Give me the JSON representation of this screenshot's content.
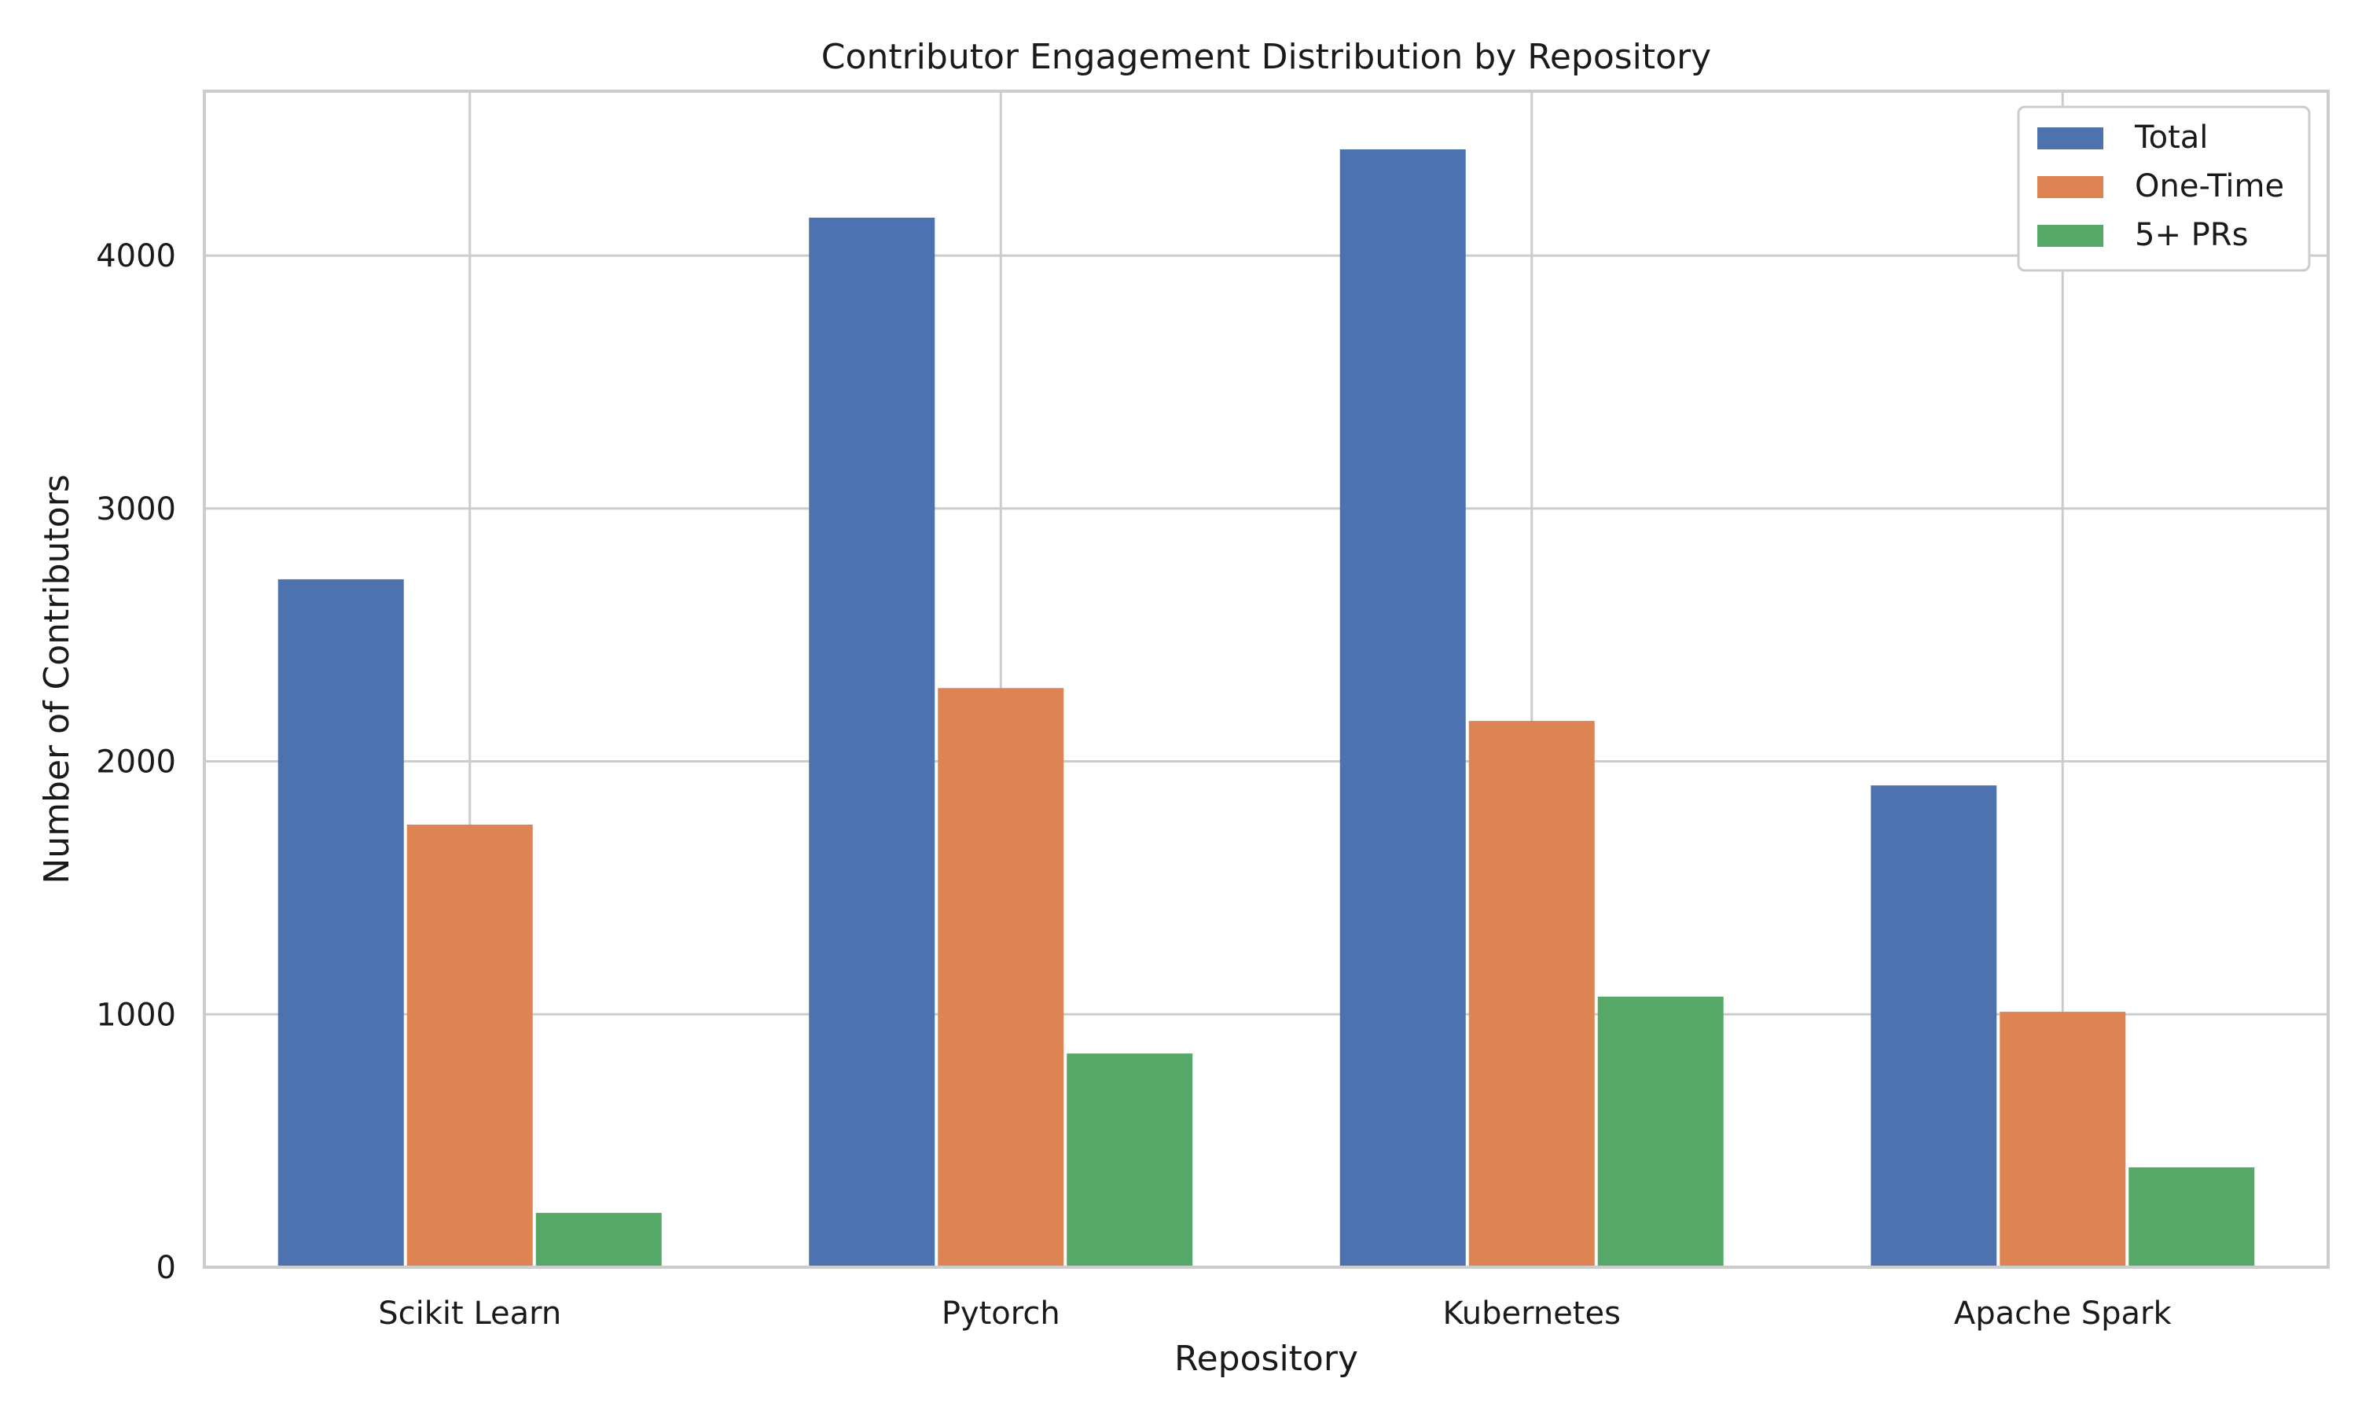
{
  "colors": {
    "total": "#4c72b0",
    "one_time": "#dd8452",
    "five_plus": "#55a868",
    "grid": "#cccccc"
  },
  "chart_data": {
    "type": "bar",
    "title": "Contributor Engagement Distribution by Repository",
    "xlabel": "Repository",
    "ylabel": "Number of Contributors",
    "categories": [
      "Scikit Learn",
      "Pytorch",
      "Kubernetes",
      "Apache Spark"
    ],
    "series": [
      {
        "name": "Total",
        "values": [
          2720,
          4150,
          4420,
          1905
        ]
      },
      {
        "name": "One-Time",
        "values": [
          1750,
          2290,
          2160,
          1010
        ]
      },
      {
        "name": "5+ PRs",
        "values": [
          215,
          845,
          1070,
          395
        ]
      }
    ],
    "ylim": [
      0,
      4650
    ],
    "yticks": [
      0,
      1000,
      2000,
      3000,
      4000
    ],
    "grid": true,
    "legend_position": "top-right"
  }
}
